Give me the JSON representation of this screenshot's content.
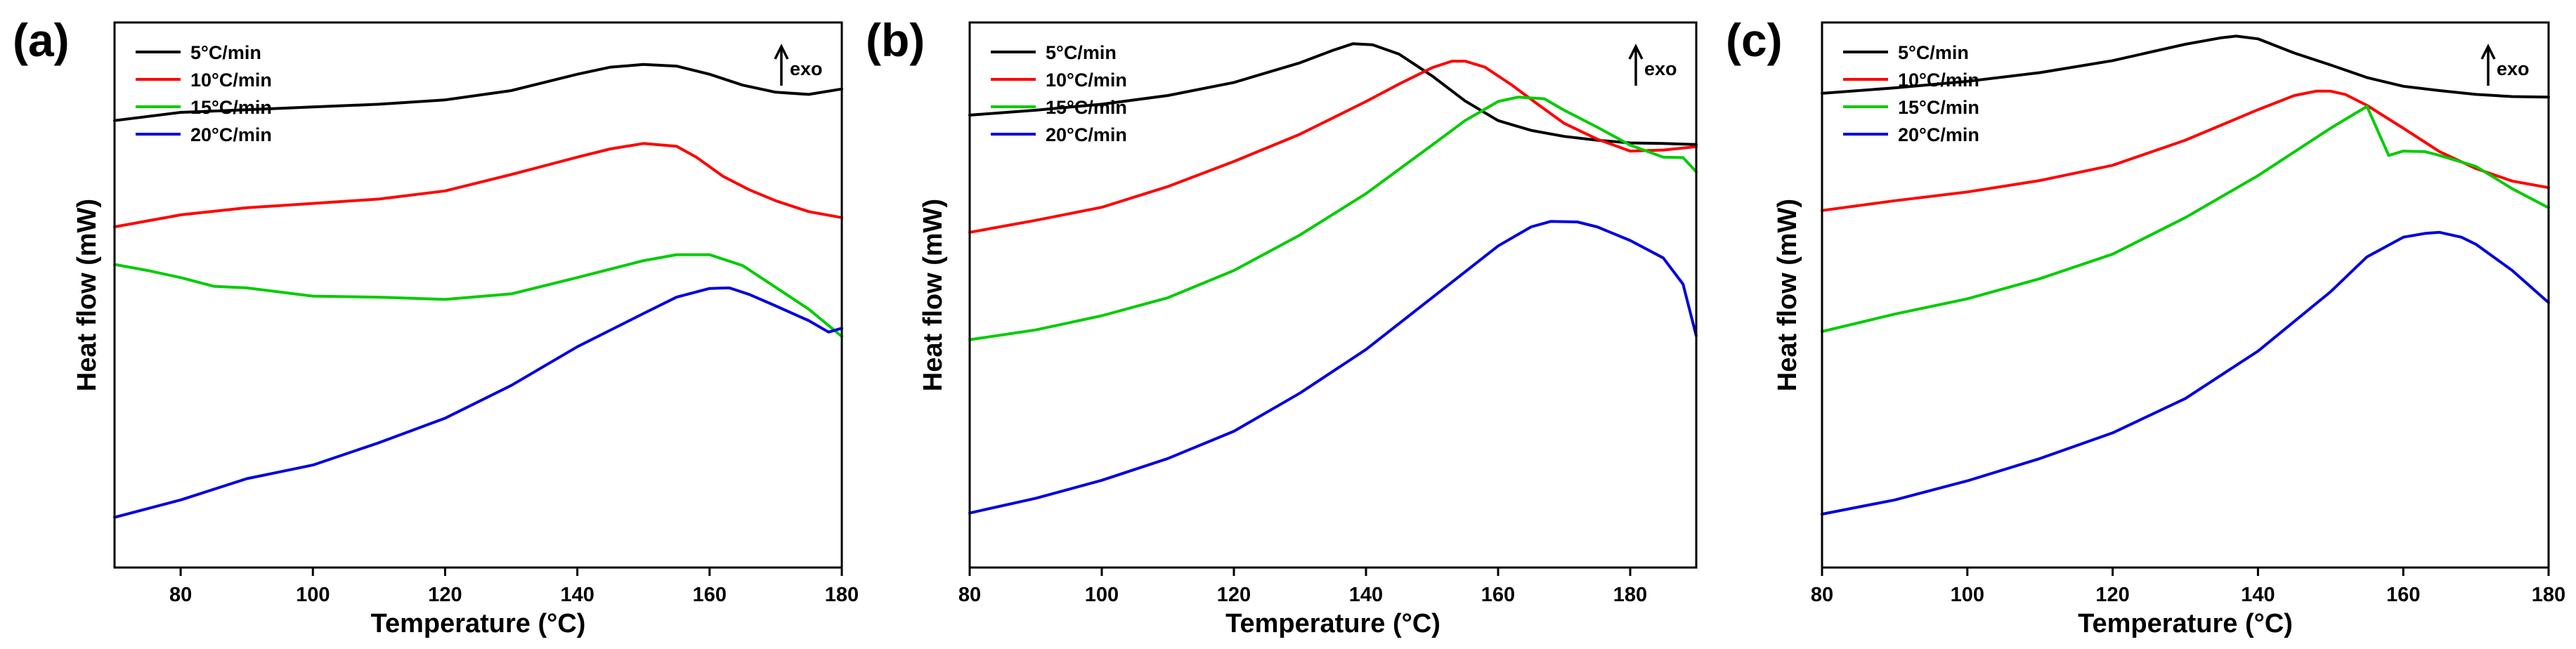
{
  "chart_data": [
    {
      "type": "line",
      "panel_label": "(a)",
      "xlabel": "Temperature (°C)",
      "ylabel": "Heat flow (mW)",
      "xlim": [
        70,
        180
      ],
      "ylim": [
        0,
        100
      ],
      "xticks": [
        80,
        100,
        120,
        140,
        160,
        180
      ],
      "y_tick_labels": false,
      "annotation": "exo",
      "legend_position": "top-left",
      "series": [
        {
          "name": "5°C/min",
          "color": "#000000",
          "x": [
            70,
            80,
            90,
            100,
            110,
            120,
            130,
            140,
            145,
            150,
            155,
            160,
            165,
            170,
            175,
            180
          ],
          "y": [
            82,
            83.5,
            84,
            84.5,
            85,
            85.8,
            87.5,
            90.5,
            91.8,
            92.3,
            92,
            90.5,
            88.5,
            87.2,
            86.8,
            87.8
          ]
        },
        {
          "name": "10°C/min",
          "color": "#ff0000",
          "x": [
            70,
            80,
            90,
            100,
            110,
            120,
            130,
            140,
            145,
            150,
            155,
            158,
            162,
            166,
            170,
            175,
            180
          ],
          "y": [
            62.5,
            64.7,
            66,
            66.8,
            67.6,
            69.1,
            72.1,
            75.3,
            76.8,
            77.8,
            77.3,
            75.3,
            71.8,
            69.3,
            67.3,
            65.3,
            64.2
          ]
        },
        {
          "name": "15°C/min",
          "color": "#00cc00",
          "x": [
            70,
            75,
            80,
            85,
            90,
            100,
            110,
            120,
            130,
            140,
            150,
            155,
            160,
            165,
            170,
            175,
            180
          ],
          "y": [
            55.6,
            54.5,
            53.2,
            51.6,
            51.3,
            49.8,
            49.6,
            49.2,
            50.2,
            53.2,
            56.3,
            57.4,
            57.4,
            55.4,
            51.4,
            47.4,
            42.4
          ]
        },
        {
          "name": "20°C/min",
          "color": "#0000dd",
          "x": [
            70,
            80,
            90,
            100,
            110,
            120,
            130,
            140,
            150,
            155,
            160,
            163,
            166,
            170,
            175,
            178,
            180
          ],
          "y": [
            9.2,
            12.4,
            16.3,
            18.8,
            22.9,
            27.4,
            33.4,
            40.5,
            46.6,
            49.6,
            51.2,
            51.3,
            50.1,
            48,
            45.3,
            43.2,
            43.9
          ]
        }
      ]
    },
    {
      "type": "line",
      "panel_label": "(b)",
      "xlabel": "Temperature (°C)",
      "ylabel": "Heat flow (mW)",
      "xlim": [
        80,
        190
      ],
      "ylim": [
        0,
        100
      ],
      "xticks": [
        80,
        100,
        120,
        140,
        160,
        180
      ],
      "y_tick_labels": false,
      "annotation": "exo",
      "legend_position": "top-left",
      "series": [
        {
          "name": "5°C/min",
          "color": "#000000",
          "x": [
            80,
            90,
            100,
            110,
            120,
            130,
            135,
            138,
            141,
            145,
            150,
            155,
            160,
            165,
            170,
            175,
            180,
            185,
            190
          ],
          "y": [
            83,
            83.9,
            85,
            86.6,
            89,
            92.6,
            94.9,
            96.1,
            95.9,
            94.2,
            90.2,
            85.6,
            82,
            80.2,
            79.1,
            78.4,
            77.9,
            77.8,
            77.6
          ]
        },
        {
          "name": "10°C/min",
          "color": "#ff0000",
          "x": [
            80,
            90,
            100,
            110,
            120,
            130,
            140,
            145,
            150,
            153,
            155,
            158,
            162,
            166,
            170,
            175,
            180,
            185,
            190
          ],
          "y": [
            61.5,
            63.7,
            66.1,
            69.9,
            74.5,
            79.5,
            85.5,
            88.7,
            91.7,
            92.9,
            92.9,
            91.8,
            88.6,
            85,
            81.5,
            78.6,
            76.4,
            76.6,
            77.2
          ]
        },
        {
          "name": "15°C/min",
          "color": "#00cc00",
          "x": [
            80,
            90,
            100,
            110,
            120,
            130,
            140,
            150,
            155,
            160,
            163,
            167,
            170,
            175,
            180,
            185,
            188,
            190
          ],
          "y": [
            41.8,
            43.6,
            46.2,
            49.5,
            54.5,
            61,
            68.6,
            77.5,
            82,
            85.5,
            86.3,
            86,
            83.9,
            80.8,
            77.5,
            75.3,
            75.2,
            72.6
          ]
        },
        {
          "name": "20°C/min",
          "color": "#0000dd",
          "x": [
            80,
            90,
            100,
            110,
            120,
            130,
            140,
            150,
            160,
            165,
            168,
            172,
            175,
            180,
            185,
            188,
            190
          ],
          "y": [
            10,
            12.7,
            16,
            20,
            25,
            32,
            40,
            49.5,
            59,
            62.5,
            63.5,
            63.4,
            62.5,
            60,
            56.8,
            52,
            42.5
          ]
        }
      ]
    },
    {
      "type": "line",
      "panel_label": "(c)",
      "xlabel": "Temperature (°C)",
      "ylabel": "Heat flow (mW)",
      "xlim": [
        80,
        180
      ],
      "ylim": [
        0,
        100
      ],
      "xticks": [
        80,
        100,
        120,
        140,
        160,
        180
      ],
      "y_tick_labels": false,
      "annotation": "exo",
      "legend_position": "top-left",
      "series": [
        {
          "name": "5°C/min",
          "color": "#000000",
          "x": [
            80,
            90,
            100,
            110,
            120,
            130,
            135,
            137,
            140,
            145,
            150,
            155,
            160,
            165,
            170,
            175,
            180
          ],
          "y": [
            87,
            88,
            89.2,
            90.8,
            93,
            96,
            97.2,
            97.5,
            97,
            94.4,
            92.2,
            89.9,
            88.3,
            87.5,
            86.8,
            86.4,
            86.3
          ]
        },
        {
          "name": "10°C/min",
          "color": "#ff0000",
          "x": [
            80,
            90,
            100,
            110,
            120,
            130,
            140,
            145,
            148,
            150,
            152,
            155,
            160,
            165,
            170,
            175,
            180
          ],
          "y": [
            65.5,
            67.3,
            68.9,
            71,
            73.8,
            78.4,
            84,
            86.6,
            87.4,
            87.4,
            86.8,
            84.8,
            80.6,
            76.3,
            73.2,
            70.9,
            69.7
          ]
        },
        {
          "name": "15°C/min",
          "color": "#00cc00",
          "x": [
            80,
            90,
            100,
            110,
            120,
            130,
            140,
            150,
            155,
            158,
            160,
            163,
            165,
            170,
            175,
            180
          ],
          "y": [
            43.3,
            46.5,
            49.3,
            53,
            57.5,
            64.2,
            71.9,
            80.6,
            84.6,
            75.6,
            76.4,
            76.3,
            75.6,
            73.6,
            69.5,
            66
          ]
        },
        {
          "name": "20°C/min",
          "color": "#0000dd",
          "x": [
            80,
            90,
            100,
            110,
            120,
            130,
            140,
            150,
            155,
            160,
            163,
            165,
            168,
            170,
            175,
            180
          ],
          "y": [
            9.8,
            12.4,
            15.9,
            20,
            24.7,
            31,
            39.7,
            50.6,
            57,
            60.6,
            61.3,
            61.5,
            60.6,
            59.3,
            54.5,
            48.6
          ]
        }
      ]
    }
  ]
}
